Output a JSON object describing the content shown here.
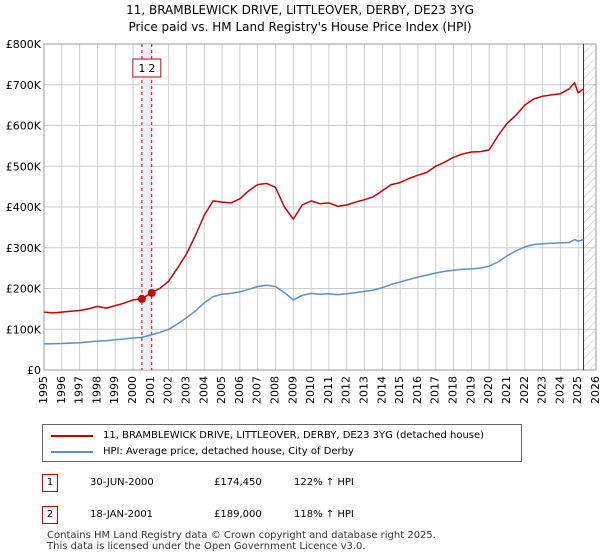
{
  "chart_data": {
    "type": "line",
    "title": "11, BRAMBLEWICK DRIVE, LITTLEOVER, DERBY, DE23 3YG",
    "subtitle": "Price paid vs. HM Land Registry's House Price Index (HPI)",
    "xlim": [
      1995,
      2026
    ],
    "ylim": [
      0,
      800000
    ],
    "x_ticks": [
      "1995",
      "1996",
      "1997",
      "1998",
      "1999",
      "2000",
      "2001",
      "2002",
      "2003",
      "2004",
      "2005",
      "2006",
      "2007",
      "2008",
      "2009",
      "2010",
      "2011",
      "2012",
      "2013",
      "2014",
      "2015",
      "2016",
      "2017",
      "2018",
      "2019",
      "2020",
      "2021",
      "2022",
      "2023",
      "2024",
      "2025",
      "2026"
    ],
    "y_ticks": [
      {
        "value": 0,
        "label": "£0"
      },
      {
        "value": 100000,
        "label": "£100K"
      },
      {
        "value": 200000,
        "label": "£200K"
      },
      {
        "value": 300000,
        "label": "£300K"
      },
      {
        "value": 400000,
        "label": "£400K"
      },
      {
        "value": 500000,
        "label": "£500K"
      },
      {
        "value": 600000,
        "label": "£600K"
      },
      {
        "value": 700000,
        "label": "£700K"
      },
      {
        "value": 800000,
        "label": "£800K"
      }
    ],
    "grid": true,
    "series": [
      {
        "name": "11, BRAMBLEWICK DRIVE, LITTLEOVER, DERBY, DE23 3YG (detached house)",
        "color": "#cc0000",
        "x": [
          1995.0,
          1995.5,
          1996.0,
          1996.5,
          1997.0,
          1997.5,
          1998.0,
          1998.5,
          1999.0,
          1999.5,
          2000.0,
          2000.5,
          2001.0,
          2001.5,
          2002.0,
          2002.5,
          2003.0,
          2003.5,
          2004.0,
          2004.5,
          2005.0,
          2005.5,
          2006.0,
          2006.5,
          2007.0,
          2007.5,
          2008.0,
          2008.5,
          2009.0,
          2009.5,
          2010.0,
          2010.5,
          2011.0,
          2011.5,
          2012.0,
          2012.5,
          2013.0,
          2013.5,
          2014.0,
          2014.5,
          2015.0,
          2015.5,
          2016.0,
          2016.5,
          2017.0,
          2017.5,
          2018.0,
          2018.5,
          2019.0,
          2019.5,
          2020.0,
          2020.5,
          2021.0,
          2021.5,
          2022.0,
          2022.5,
          2023.0,
          2023.5,
          2024.0,
          2024.5,
          2024.8,
          2025.0,
          2025.3
        ],
        "values": [
          142000,
          140000,
          142000,
          144000,
          146000,
          150000,
          156000,
          152000,
          158000,
          164000,
          172000,
          174450,
          189000,
          200000,
          218000,
          250000,
          285000,
          330000,
          380000,
          415000,
          412000,
          410000,
          420000,
          440000,
          455000,
          458000,
          448000,
          400000,
          370000,
          405000,
          415000,
          408000,
          410000,
          402000,
          405000,
          412000,
          418000,
          425000,
          440000,
          455000,
          460000,
          470000,
          478000,
          485000,
          500000,
          510000,
          522000,
          530000,
          535000,
          536000,
          540000,
          575000,
          605000,
          625000,
          650000,
          665000,
          672000,
          675000,
          678000,
          690000,
          705000,
          680000,
          690000
        ]
      },
      {
        "name": "HPI: Average price, detached house, City of Derby",
        "color": "#5b8fcc",
        "x": [
          1995.0,
          1995.5,
          1996.0,
          1996.5,
          1997.0,
          1997.5,
          1998.0,
          1998.5,
          1999.0,
          1999.5,
          2000.0,
          2000.5,
          2001.0,
          2001.5,
          2002.0,
          2002.5,
          2003.0,
          2003.5,
          2004.0,
          2004.5,
          2005.0,
          2005.5,
          2006.0,
          2006.5,
          2007.0,
          2007.5,
          2008.0,
          2008.5,
          2009.0,
          2009.5,
          2010.0,
          2010.5,
          2011.0,
          2011.5,
          2012.0,
          2012.5,
          2013.0,
          2013.5,
          2014.0,
          2014.5,
          2015.0,
          2015.5,
          2016.0,
          2016.5,
          2017.0,
          2017.5,
          2018.0,
          2018.5,
          2019.0,
          2019.5,
          2020.0,
          2020.5,
          2021.0,
          2021.5,
          2022.0,
          2022.5,
          2023.0,
          2023.5,
          2024.0,
          2024.5,
          2024.8,
          2025.0,
          2025.3
        ],
        "values": [
          64000,
          64500,
          65000,
          66000,
          67000,
          69000,
          71000,
          72000,
          74000,
          76000,
          78500,
          80000,
          86000,
          92000,
          100000,
          113000,
          128000,
          145000,
          165000,
          180000,
          186000,
          188000,
          192000,
          198000,
          205000,
          208000,
          205000,
          190000,
          172000,
          183000,
          188000,
          186000,
          187000,
          185000,
          187000,
          190000,
          193000,
          196000,
          202000,
          210000,
          216000,
          222000,
          228000,
          233000,
          238000,
          242000,
          245000,
          247000,
          248000,
          250000,
          255000,
          265000,
          280000,
          292000,
          302000,
          308000,
          310000,
          311000,
          312000,
          313000,
          320000,
          316000,
          320000
        ]
      }
    ],
    "markers": [
      {
        "label": "1",
        "x": 2000.5,
        "value": 174450
      },
      {
        "label": "2",
        "x": 2001.05,
        "value": 189000
      }
    ]
  },
  "legend": {
    "property_label": "11, BRAMBLEWICK DRIVE, LITTLEOVER, DERBY, DE23 3YG (detached house)",
    "hpi_label": "HPI: Average price, detached house, City of Derby",
    "property_color": "#cc0000",
    "hpi_color": "#5b8fcc"
  },
  "transactions": [
    {
      "num": "1",
      "date": "30-JUN-2000",
      "price": "£174,450",
      "hpi": "122% ↑ HPI"
    },
    {
      "num": "2",
      "date": "18-JAN-2001",
      "price": "£189,000",
      "hpi": "118% ↑ HPI"
    }
  ],
  "footer": {
    "line1": "Contains HM Land Registry data © Crown copyright and database right 2025.",
    "line2": "This data is licensed under the Open Government Licence v3.0."
  }
}
